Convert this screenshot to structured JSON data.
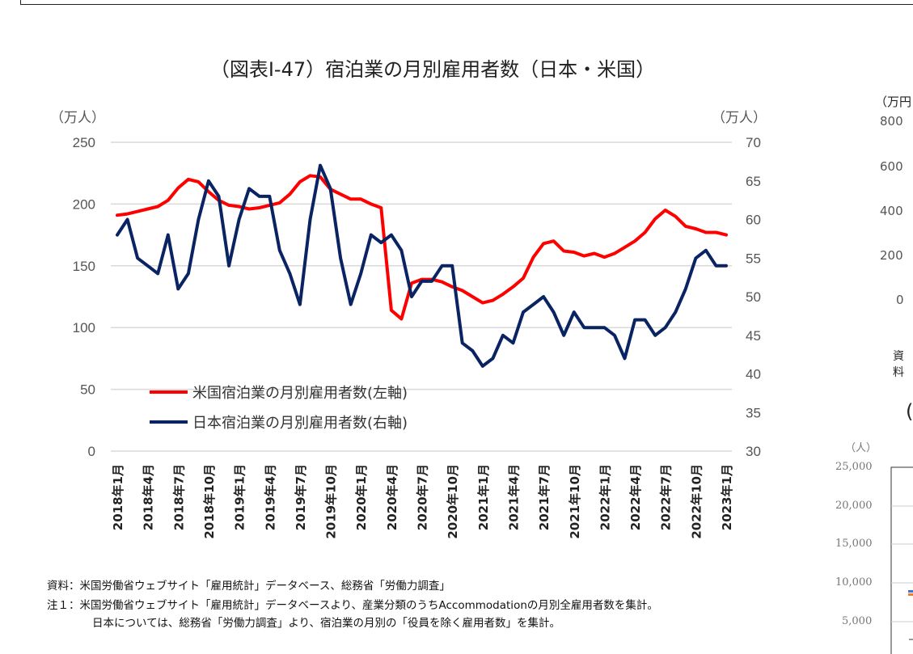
{
  "chart_data": {
    "type": "line",
    "title": "（図表Ⅰ-47）宿泊業の月別雇用者数（日本・米国）",
    "ylabel_left": "（万人）",
    "ylabel_right": "（万人）",
    "ylim_left": [
      0,
      250
    ],
    "ylim_right": [
      30,
      70
    ],
    "yticks_left": [
      "0",
      "50",
      "100",
      "150",
      "200",
      "250"
    ],
    "yticks_right": [
      "30",
      "35",
      "40",
      "45",
      "50",
      "55",
      "60",
      "65",
      "70"
    ],
    "grid": true,
    "legend": "lower-left",
    "x_tick_labels": [
      "2018年1月",
      "2018年4月",
      "2018年7月",
      "2018年10月",
      "2019年1月",
      "2019年4月",
      "2019年7月",
      "2019年10月",
      "2020年1月",
      "2020年4月",
      "2020年7月",
      "2020年10月",
      "2021年1月",
      "2021年4月",
      "2021年7月",
      "2021年10月",
      "2022年1月",
      "2022年4月",
      "2022年7月",
      "2022年10月",
      "2023年1月"
    ],
    "x_start": "2018-01",
    "x_end": "2023-01",
    "series": [
      {
        "name": "米国宿泊業の月別雇用者数(左軸)",
        "axis": "left",
        "color": "#ff0000",
        "values": [
          191,
          192,
          194,
          196,
          198,
          203,
          213,
          220,
          218,
          210,
          203,
          199,
          198,
          196,
          197,
          199,
          201,
          208,
          218,
          223,
          222,
          212,
          208,
          204,
          204,
          200,
          197,
          114,
          107,
          136,
          139,
          139,
          137,
          133,
          130,
          125,
          120,
          122,
          127,
          133,
          140,
          157,
          168,
          170,
          162,
          161,
          158,
          160,
          157,
          160,
          165,
          170,
          177,
          188,
          195,
          190,
          182,
          180,
          177,
          177,
          175
        ]
      },
      {
        "name": "日本宿泊業の月別雇用者数(右軸)",
        "axis": "right",
        "color": "#0a2463",
        "values": [
          58,
          60,
          55,
          54,
          53,
          58,
          51,
          53,
          60,
          65,
          63,
          54,
          60,
          64,
          63,
          63,
          56,
          53,
          49,
          60,
          67,
          64,
          55,
          49,
          53,
          58,
          57,
          58,
          56,
          50,
          52,
          52,
          54,
          54,
          44,
          43,
          41,
          42,
          45,
          44,
          48,
          49,
          50,
          48,
          45,
          48,
          46,
          46,
          46,
          45,
          42,
          47,
          47,
          45,
          46,
          48,
          51,
          55,
          56,
          54,
          54
        ]
      }
    ]
  },
  "notes": {
    "source": "資料：米国労働省ウェブサイト「雇用統計」データベース、総務省「労働力調査」",
    "note1": "注１：米国労働省ウェブサイト「雇用統計」データベースより、産業分類のうちAccommodationの月別全雇用者数を集計。",
    "note1b": "日本については、総務省「労働力調査」より、宿泊業の月別の「役員を除く雇用者数」を集計。"
  },
  "side_chart_top": {
    "unit": "（万円",
    "ticks": [
      "800",
      "600",
      "400",
      "200",
      "0"
    ],
    "source": "資料"
  },
  "side_chart_bottom": {
    "title": "(",
    "unit": "（人）",
    "ticks": [
      "25,000",
      "20,000",
      "15,000",
      "10,000",
      "5,000"
    ]
  }
}
